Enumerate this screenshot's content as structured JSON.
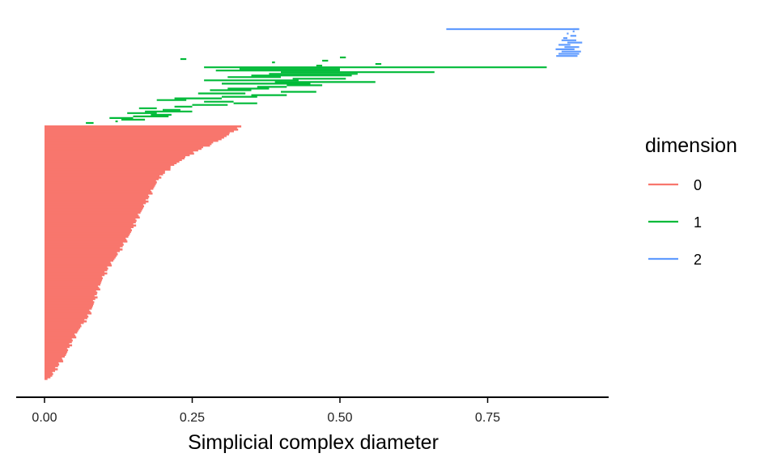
{
  "chart_data": {
    "type": "barcode",
    "xlabel": "Simplicial complex diameter",
    "xlim": [
      -0.046,
      0.955
    ],
    "x_ticks": [
      0.0,
      0.25,
      0.5,
      0.75
    ],
    "x_tick_labels": [
      "0.00",
      "0.25",
      "0.50",
      "0.75"
    ],
    "grid": false,
    "legend": {
      "title": "dimension",
      "position": "right",
      "entries": [
        {
          "label": "0",
          "color": "#F8766D"
        },
        {
          "label": "1",
          "color": "#00BA38"
        },
        {
          "label": "2",
          "color": "#619CFF"
        }
      ]
    },
    "series": [
      {
        "name": "0",
        "color": "#F8766D",
        "profile_note_free": true,
        "intervals_profile": [
          [
            0.0,
            0.333
          ],
          [
            0.05,
            0.3
          ],
          [
            0.1,
            0.255
          ],
          [
            0.15,
            0.22
          ],
          [
            0.2,
            0.195
          ],
          [
            0.25,
            0.183
          ],
          [
            0.3,
            0.172
          ],
          [
            0.35,
            0.16
          ],
          [
            0.4,
            0.15
          ],
          [
            0.45,
            0.138
          ],
          [
            0.5,
            0.125
          ],
          [
            0.55,
            0.11
          ],
          [
            0.6,
            0.098
          ],
          [
            0.65,
            0.09
          ],
          [
            0.7,
            0.083
          ],
          [
            0.75,
            0.074
          ],
          [
            0.8,
            0.058
          ],
          [
            0.85,
            0.046
          ],
          [
            0.9,
            0.036
          ],
          [
            0.95,
            0.021
          ],
          [
            0.985,
            0.012
          ],
          [
            1.0,
            0.0
          ]
        ]
      },
      {
        "name": "1",
        "color": "#00BA38",
        "intervals": [
          [
            0.07,
            0.083
          ],
          [
            0.12,
            0.124
          ],
          [
            0.13,
            0.17
          ],
          [
            0.11,
            0.15
          ],
          [
            0.15,
            0.21
          ],
          [
            0.18,
            0.215
          ],
          [
            0.14,
            0.19
          ],
          [
            0.17,
            0.25
          ],
          [
            0.2,
            0.23
          ],
          [
            0.16,
            0.19
          ],
          [
            0.22,
            0.25
          ],
          [
            0.25,
            0.31
          ],
          [
            0.32,
            0.36
          ],
          [
            0.27,
            0.32
          ],
          [
            0.19,
            0.24
          ],
          [
            0.22,
            0.3
          ],
          [
            0.3,
            0.36
          ],
          [
            0.35,
            0.41
          ],
          [
            0.26,
            0.34
          ],
          [
            0.4,
            0.46
          ],
          [
            0.28,
            0.35
          ],
          [
            0.31,
            0.38
          ],
          [
            0.36,
            0.41
          ],
          [
            0.41,
            0.47
          ],
          [
            0.3,
            0.45
          ],
          [
            0.39,
            0.56
          ],
          [
            0.27,
            0.43
          ],
          [
            0.42,
            0.51
          ],
          [
            0.31,
            0.4
          ],
          [
            0.35,
            0.52
          ],
          [
            0.38,
            0.53
          ],
          [
            0.4,
            0.66
          ],
          [
            0.29,
            0.5
          ],
          [
            0.33,
            0.5
          ],
          [
            0.27,
            0.85
          ],
          [
            0.46,
            0.47
          ],
          [
            0.56,
            0.57
          ],
          [
            0.385,
            0.39
          ],
          [
            0.47,
            0.48
          ],
          [
            0.23,
            0.24
          ],
          [
            0.5,
            0.51
          ]
        ]
      },
      {
        "name": "2",
        "color": "#619CFF",
        "intervals": [
          [
            0.68,
            0.905
          ],
          [
            0.866,
            0.902
          ],
          [
            0.87,
            0.905
          ],
          [
            0.875,
            0.908
          ],
          [
            0.865,
            0.897
          ],
          [
            0.88,
            0.905
          ],
          [
            0.87,
            0.89
          ],
          [
            0.885,
            0.91
          ],
          [
            0.875,
            0.9
          ],
          [
            0.878,
            0.885
          ],
          [
            0.89,
            0.9
          ],
          [
            0.884,
            0.887
          ],
          [
            0.894,
            0.897
          ],
          [
            0.895,
            0.905
          ]
        ]
      }
    ]
  }
}
